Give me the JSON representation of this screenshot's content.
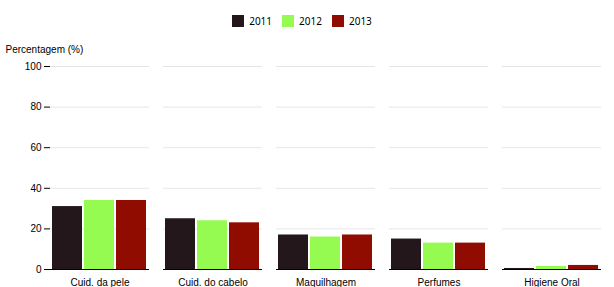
{
  "chart_data": {
    "type": "bar",
    "categories": [
      "Cuid. da pele",
      "Cuid. do cabelo",
      "Maquilhagem",
      "Perfumes",
      "Higiene Oral"
    ],
    "series": [
      {
        "name": "2011",
        "values": [
          31,
          25,
          17,
          15,
          0.5
        ]
      },
      {
        "name": "2012",
        "values": [
          34,
          24,
          16,
          13,
          1.5
        ]
      },
      {
        "name": "2013",
        "values": [
          34,
          23,
          17,
          13,
          2
        ]
      }
    ],
    "ylabel": "Percentagem (%)",
    "ylim": [
      0,
      100
    ],
    "yticks": [
      0,
      20,
      40,
      60,
      80,
      100
    ],
    "grid": true,
    "legend": "top"
  }
}
